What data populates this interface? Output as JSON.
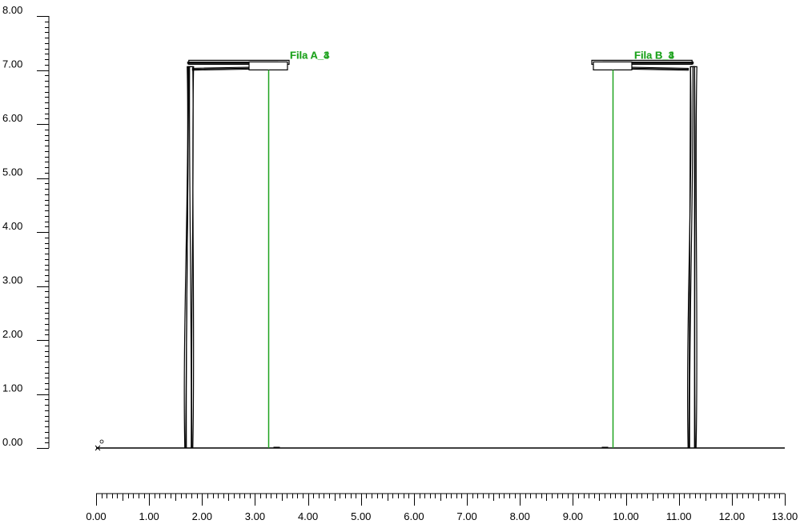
{
  "chart_data": {
    "type": "diagram",
    "x_axis": {
      "range": [
        0,
        13
      ],
      "tick_labels": [
        "0.00",
        "1.00",
        "2.00",
        "3.00",
        "4.00",
        "5.00",
        "6.00",
        "7.00",
        "8.00",
        "9.00",
        "10.00",
        "11.00",
        "12.00",
        "13.00"
      ]
    },
    "y_axis": {
      "range": [
        0,
        8
      ],
      "tick_labels": [
        "0.00",
        "1.00",
        "2.00",
        "3.00",
        "4.00",
        "5.00",
        "6.00",
        "7.00",
        "8.00"
      ]
    },
    "ground_level": 0,
    "poles": [
      {
        "label": "Fila A_3",
        "label_overlay": "Fila A_4",
        "base_x": 1.75,
        "height": 7.15,
        "arm_tip_x": 3.25,
        "light_x": 3.25
      },
      {
        "label": "Fila B_3",
        "label_overlay": "Fila B_4",
        "base_x": 11.25,
        "height": 7.15,
        "arm_tip_x": 9.75,
        "light_x": 9.75
      }
    ],
    "colors": {
      "structure": "#000000",
      "light_line": "#1fa31f",
      "label": "#1fa31f"
    }
  }
}
